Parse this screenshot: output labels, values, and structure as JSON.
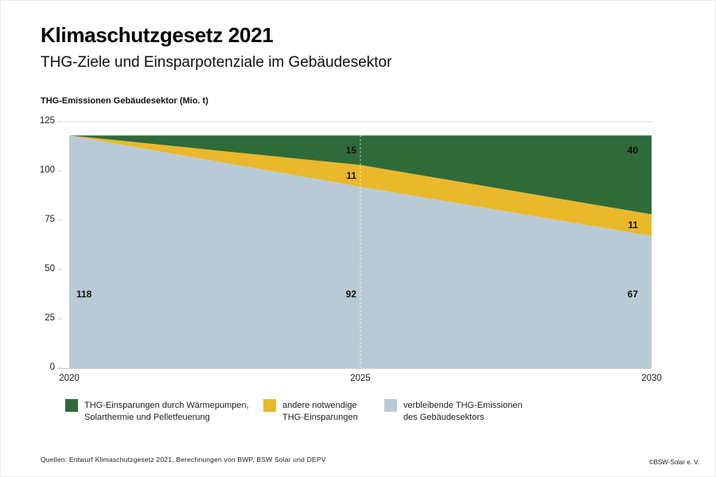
{
  "header": {
    "title": "Klimaschutzgesetz 2021",
    "subtitle": "THG-Ziele und Einsparpotenziale im Gebäudesektor"
  },
  "axis_title": "THG-Emissionen Gebäudesektor (Mio. t)",
  "chart_data": {
    "type": "area",
    "stacked": true,
    "title": "Klimaschutzgesetz 2021",
    "subtitle": "THG-Ziele und Einsparpotenziale im Gebäudesektor",
    "ylabel": "THG-Emissionen Gebäudesektor (Mio. t)",
    "xlabel": "",
    "x": [
      2020,
      2025,
      2030
    ],
    "xlim": [
      2020,
      2030
    ],
    "ylim": [
      0,
      125
    ],
    "yticks": [
      0,
      25,
      50,
      75,
      100,
      125
    ],
    "grid": "single light horizontal gridline at y=125; dashed white vertical marker line at x=2025",
    "legend_position": "bottom",
    "series": [
      {
        "name": "verbleibende THG-Emissionen des Gebäudesektors",
        "color": "#b9cad7",
        "values": [
          118,
          92,
          67
        ]
      },
      {
        "name": "andere notwendige THG-Einsparungen",
        "color": "#e9b92b",
        "values": [
          0,
          11,
          11
        ]
      },
      {
        "name": "THG-Einsparungen durch Wärmepumpen, Solarthermie und Pelletfeuerung",
        "color": "#2e6b39",
        "values": [
          0,
          15,
          40
        ]
      }
    ],
    "annotations": [
      {
        "text": "118",
        "year": 2020,
        "band": "blue"
      },
      {
        "text": "92",
        "year": 2025,
        "band": "blue"
      },
      {
        "text": "67",
        "year": 2030,
        "band": "blue"
      },
      {
        "text": "15",
        "year": 2025,
        "band": "green"
      },
      {
        "text": "11",
        "year": 2025,
        "band": "yellow"
      },
      {
        "text": "40",
        "year": 2030,
        "band": "green"
      },
      {
        "text": "11",
        "year": 2030,
        "band": "yellow"
      }
    ]
  },
  "legend": {
    "items": [
      {
        "line1": "THG-Einsparungen durch Wärmepumpen,",
        "line2": "Solarthermie und Pelletfeuerung",
        "color": "#2e6b39"
      },
      {
        "line1": "andere notwendige",
        "line2": "THG-Einsparungen",
        "color": "#e9b92b"
      },
      {
        "line1": "verbleibende THG-Emissionen",
        "line2": "des Gebäudesektors",
        "color": "#b9cad7"
      }
    ]
  },
  "footer": {
    "sources": "Quellen: Entwurf Klimaschutzgesetz 2021, Berechnungen von BWP, BSW Solar und DEPV",
    "copyright": "©BSW-Solar e. V."
  },
  "colors": {
    "green": "#2e6b39",
    "yellow": "#e9b92b",
    "blue": "#b9cad7",
    "gridline": "#dadada",
    "tick": "#cccccc",
    "text": "#1a1a1a"
  }
}
